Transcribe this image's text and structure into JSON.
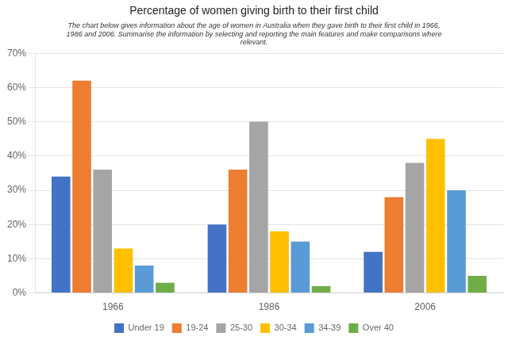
{
  "chart_data": {
    "type": "bar",
    "title": "Percentage of women giving birth to their first child",
    "subtitle": "The chart below gives information about the age of women in Australia when they gave birth to their first child in 1966,\n1986 and 2006. Summarise the information by selecting and reporting the main features and make comparisons where\nrelevant.",
    "categories": [
      "1966",
      "1986",
      "2006"
    ],
    "series": [
      {
        "name": "Under 19",
        "color": "#4472C4",
        "values": [
          34,
          20,
          12
        ]
      },
      {
        "name": "19-24",
        "color": "#ED7D31",
        "values": [
          62,
          36,
          28
        ]
      },
      {
        "name": "25-30",
        "color": "#A5A5A5",
        "values": [
          36,
          50,
          38
        ]
      },
      {
        "name": "30-34",
        "color": "#FFC000",
        "values": [
          13,
          18,
          45
        ]
      },
      {
        "name": "34-39",
        "color": "#5B9BD5",
        "values": [
          8,
          15,
          30
        ]
      },
      {
        "name": "Over 40",
        "color": "#70AD47",
        "values": [
          3,
          2,
          5
        ]
      }
    ],
    "ylim": [
      0,
      70
    ],
    "yticks": [
      {
        "value": 0,
        "label": "0%"
      },
      {
        "value": 10,
        "label": "10%"
      },
      {
        "value": 20,
        "label": "20%"
      },
      {
        "value": 30,
        "label": "30%"
      },
      {
        "value": 40,
        "label": "40%"
      },
      {
        "value": 50,
        "label": "50%"
      },
      {
        "value": 60,
        "label": "60%"
      },
      {
        "value": 70,
        "label": "70%"
      }
    ],
    "grid": true,
    "legend": "bottom"
  }
}
